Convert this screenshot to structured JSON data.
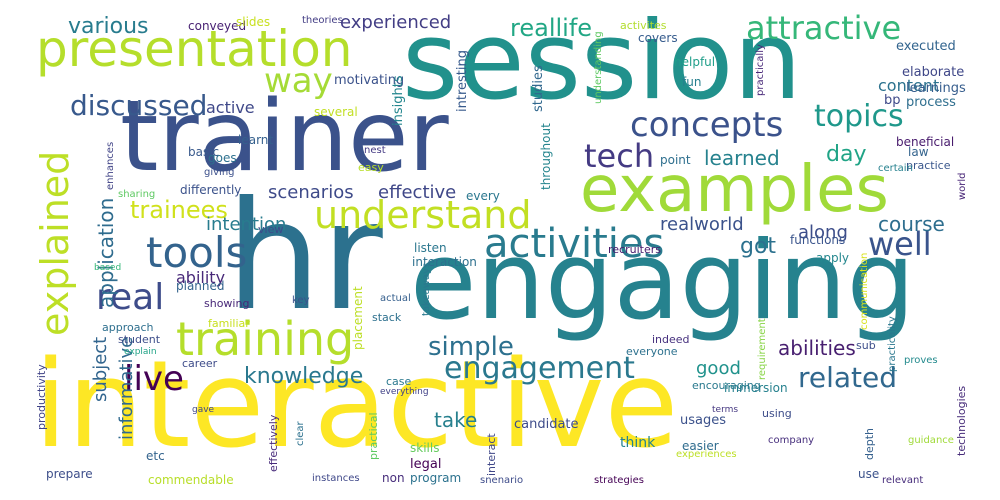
{
  "words": [
    {
      "text": "interactive",
      "color": "#fde725"
    },
    {
      "text": "hr",
      "color": "#2c718e"
    },
    {
      "text": "engaging",
      "color": "#26828e"
    },
    {
      "text": "session",
      "color": "#21918c"
    },
    {
      "text": "trainer",
      "color": "#3b528b"
    },
    {
      "text": "examples",
      "color": "#a0da39"
    },
    {
      "text": "presentation",
      "color": "#b5de2b"
    },
    {
      "text": "understand",
      "color": "#c2df23"
    },
    {
      "text": "training",
      "color": "#b5de2b"
    },
    {
      "text": "activities",
      "color": "#297b8e"
    },
    {
      "text": "tools",
      "color": "#33638d"
    },
    {
      "text": "explained",
      "color": "#bddf26"
    },
    {
      "text": "live",
      "color": "#440154"
    },
    {
      "text": "real",
      "color": "#3e4c8a"
    },
    {
      "text": "way",
      "color": "#a5db36"
    },
    {
      "text": "discussed",
      "color": "#38598c"
    },
    {
      "text": "concepts",
      "color": "#3b528b"
    },
    {
      "text": "topics",
      "color": "#1f988b"
    },
    {
      "text": "attractive",
      "color": "#35b779"
    },
    {
      "text": "tech",
      "color": "#443a83"
    },
    {
      "text": "engagement",
      "color": "#2a788e"
    },
    {
      "text": "related",
      "color": "#31688e"
    },
    {
      "text": "well",
      "color": "#3a548c"
    },
    {
      "text": "trainees",
      "color": "#d0e11c"
    },
    {
      "text": "simple",
      "color": "#2d708e"
    },
    {
      "text": "knowledge",
      "color": "#2a788e"
    },
    {
      "text": "application",
      "color": "#2f6c8e"
    },
    {
      "text": "reallife",
      "color": "#22a785"
    },
    {
      "text": "various",
      "color": "#287c8e"
    },
    {
      "text": "experienced",
      "color": "#433e85"
    },
    {
      "text": "day",
      "color": "#20a486"
    },
    {
      "text": "learned",
      "color": "#26828e"
    },
    {
      "text": "scenarios",
      "color": "#3e4a89"
    },
    {
      "text": "effective",
      "color": "#3f4788"
    },
    {
      "text": "got",
      "color": "#2c718e"
    },
    {
      "text": "abilities",
      "color": "#481f70"
    },
    {
      "text": "along",
      "color": "#3d4e8a"
    },
    {
      "text": "course",
      "color": "#2e6e8e"
    },
    {
      "text": "realworld",
      "color": "#3b528b"
    },
    {
      "text": "intention",
      "color": "#287c8e"
    },
    {
      "text": "ability",
      "color": "#482979"
    },
    {
      "text": "active",
      "color": "#3f4889"
    },
    {
      "text": "subject",
      "color": "#32658e"
    },
    {
      "text": "informative",
      "color": "#30698e"
    },
    {
      "text": "take",
      "color": "#27808e"
    },
    {
      "text": "good",
      "color": "#20928c"
    },
    {
      "text": "content",
      "color": "#2c728e"
    },
    {
      "text": "motivating",
      "color": "#3b528b"
    },
    {
      "text": "executed",
      "color": "#32648e"
    },
    {
      "text": "elaborate",
      "color": "#3f4788"
    },
    {
      "text": "learnings",
      "color": "#365d8d"
    },
    {
      "text": "process",
      "color": "#2e6e8e"
    },
    {
      "text": "bp",
      "color": "#3e4989"
    },
    {
      "text": "insights",
      "color": "#24868e"
    },
    {
      "text": "intresting",
      "color": "#375a8c"
    },
    {
      "text": "studies",
      "color": "#31688e"
    },
    {
      "text": "covers",
      "color": "#365c8d"
    },
    {
      "text": "activites",
      "color": "#b2dd2d"
    },
    {
      "text": "helpful",
      "color": "#1f9e89"
    },
    {
      "text": "fun",
      "color": "#277f8e"
    },
    {
      "text": "conveyed",
      "color": "#482173"
    },
    {
      "text": "slides",
      "color": "#c8e020"
    },
    {
      "text": "theories",
      "color": "#433d84"
    },
    {
      "text": "understanding",
      "color": "#5ec962"
    },
    {
      "text": "practically",
      "color": "#482979"
    },
    {
      "text": "several",
      "color": "#c2df23"
    },
    {
      "text": "learnt",
      "color": "#35608d"
    },
    {
      "text": "basic",
      "color": "#38598c"
    },
    {
      "text": "goes",
      "color": "#2d708e"
    },
    {
      "text": "giving",
      "color": "#3c508b"
    },
    {
      "text": "easy",
      "color": "#b8de29"
    },
    {
      "text": "nest",
      "color": "#443983"
    },
    {
      "text": "point",
      "color": "#2e6f8e"
    },
    {
      "text": "beneficial",
      "color": "#481b6d"
    },
    {
      "text": "practice",
      "color": "#39568c"
    },
    {
      "text": "law",
      "color": "#33638d"
    },
    {
      "text": "certain",
      "color": "#26818e"
    },
    {
      "text": "world",
      "color": "#482677"
    },
    {
      "text": "throughout",
      "color": "#25858e"
    },
    {
      "text": "every",
      "color": "#2a778e"
    },
    {
      "text": "differently",
      "color": "#3b528b"
    },
    {
      "text": "sharing",
      "color": "#5ec962"
    },
    {
      "text": "enhances",
      "color": "#414487"
    },
    {
      "text": "listen",
      "color": "#2a768e"
    },
    {
      "text": "interaction",
      "color": "#2d708e"
    },
    {
      "text": "view",
      "color": "#3e4989"
    },
    {
      "text": "recruiters",
      "color": "#481a6c"
    },
    {
      "text": "functions",
      "color": "#3a548c"
    },
    {
      "text": "apply",
      "color": "#24878e"
    },
    {
      "text": "communication",
      "color": "#d8e219"
    },
    {
      "text": "planned",
      "color": "#33638d"
    },
    {
      "text": "showing",
      "color": "#482878"
    },
    {
      "text": "based",
      "color": "#35b779"
    },
    {
      "text": "key",
      "color": "#3b528b"
    },
    {
      "text": "placement",
      "color": "#bddf26"
    },
    {
      "text": "stack",
      "color": "#2d708e"
    },
    {
      "text": "actual",
      "color": "#355f8d"
    },
    {
      "text": "takeaways",
      "color": "#2a788e"
    },
    {
      "text": "familiar",
      "color": "#c8e020"
    },
    {
      "text": "approach",
      "color": "#2e6f8e"
    },
    {
      "text": "student",
      "color": "#3d4e8a"
    },
    {
      "text": "explain",
      "color": "#20a386"
    },
    {
      "text": "career",
      "color": "#3e4c8a"
    },
    {
      "text": "indeed",
      "color": "#46307e"
    },
    {
      "text": "everyone",
      "color": "#2d718e"
    },
    {
      "text": "requirement",
      "color": "#89d548"
    },
    {
      "text": "sub",
      "color": "#3d4e8a"
    },
    {
      "text": "practicality",
      "color": "#2a778e"
    },
    {
      "text": "proves",
      "color": "#238a8d"
    },
    {
      "text": "productivity",
      "color": "#404387"
    },
    {
      "text": "immersion",
      "color": "#26818e"
    },
    {
      "text": "encouraging",
      "color": "#29798e"
    },
    {
      "text": "case",
      "color": "#2a788e"
    },
    {
      "text": "everything",
      "color": "#414287"
    },
    {
      "text": "technologies",
      "color": "#472c7a"
    },
    {
      "text": "terms",
      "color": "#453781"
    },
    {
      "text": "using",
      "color": "#3d4d8a"
    },
    {
      "text": "usages",
      "color": "#3b518b"
    },
    {
      "text": "candidate",
      "color": "#3e4c8a"
    },
    {
      "text": "think",
      "color": "#25838e"
    },
    {
      "text": "interact",
      "color": "#3f4788"
    },
    {
      "text": "effectively",
      "color": "#472a7a"
    },
    {
      "text": "clear",
      "color": "#2c718e"
    },
    {
      "text": "gave",
      "color": "#3f4788"
    },
    {
      "text": "practical",
      "color": "#5ec962"
    },
    {
      "text": "skills",
      "color": "#65cb5e"
    },
    {
      "text": "legal",
      "color": "#440154"
    },
    {
      "text": "program",
      "color": "#2c728e"
    },
    {
      "text": "non",
      "color": "#472d7b"
    },
    {
      "text": "easier",
      "color": "#2f6c8e"
    },
    {
      "text": "company",
      "color": "#472f7d"
    },
    {
      "text": "depth",
      "color": "#35608d"
    },
    {
      "text": "guidance",
      "color": "#a0da39"
    },
    {
      "text": "etc",
      "color": "#33638d"
    },
    {
      "text": "prepare",
      "color": "#3d4e8a"
    },
    {
      "text": "commendable",
      "color": "#b8de29"
    },
    {
      "text": "instances",
      "color": "#3f4889"
    },
    {
      "text": "snenario",
      "color": "#3e4c8a"
    },
    {
      "text": "strategies",
      "color": "#440154"
    },
    {
      "text": "experiences",
      "color": "#bddf26"
    },
    {
      "text": "use",
      "color": "#3b528b"
    },
    {
      "text": "relevant",
      "color": "#472d7b"
    }
  ]
}
